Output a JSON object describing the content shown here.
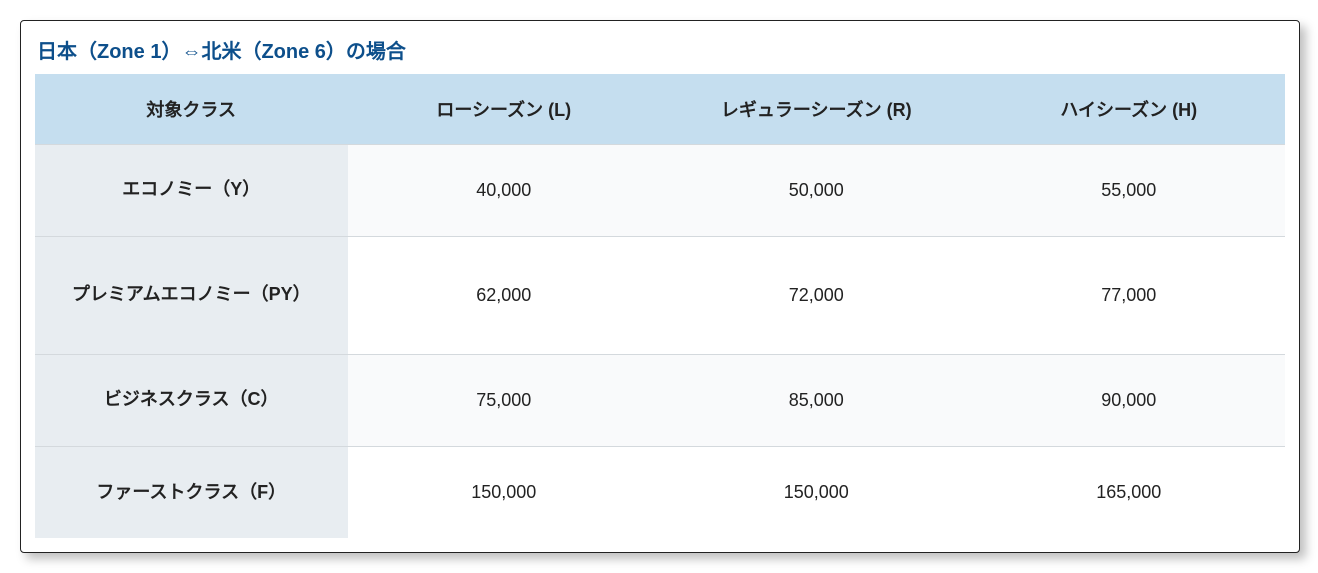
{
  "title": "日本（Zone 1）⇔北米（Zone 6）の場合",
  "title_color": "#0d4f8b",
  "columns": [
    "対象クラス",
    "ローシーズン (L)",
    "レギュラーシーズン (R)",
    "ハイシーズン (H)"
  ],
  "rows": [
    {
      "class": "エコノミー（Y）",
      "low": "40,000",
      "regular": "50,000",
      "high": "55,000",
      "tall": false
    },
    {
      "class": "プレミアムエコノミー（PY）",
      "low": "62,000",
      "regular": "72,000",
      "high": "77,000",
      "tall": true
    },
    {
      "class": "ビジネスクラス（C）",
      "low": "75,000",
      "regular": "85,000",
      "high": "90,000",
      "tall": false
    },
    {
      "class": "ファーストクラス（F）",
      "low": "150,000",
      "regular": "150,000",
      "high": "165,000",
      "tall": false
    }
  ],
  "colors": {
    "header_bg": "#c5deef",
    "class_col_bg": "#e8edf1",
    "row_alt_bg": "#f9fafb",
    "row_bg": "#ffffff",
    "border": "#d4d9dd"
  }
}
